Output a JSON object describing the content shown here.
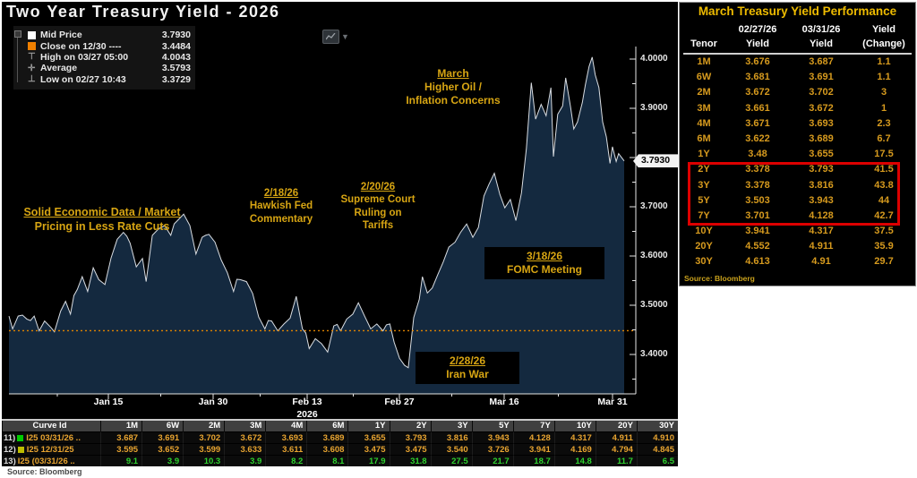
{
  "chart": {
    "title": "Two Year Treasury Yield - 2026",
    "legend": [
      {
        "icon": "mid-price-swatch",
        "glyph": "",
        "label": "Mid Price",
        "value": "3.7930"
      },
      {
        "icon": "close-line-swatch",
        "glyph": "",
        "label": "Close on 12/30 ----",
        "value": "3.4484"
      },
      {
        "icon": "high-marker",
        "glyph": "⊤",
        "label": "High on 03/27 05:00",
        "value": "4.0043"
      },
      {
        "icon": "average-marker",
        "glyph": "✛",
        "label": "Average",
        "value": "3.5793"
      },
      {
        "icon": "low-marker",
        "glyph": "⊥",
        "label": "Low on 02/27 10:43",
        "value": "3.3729"
      }
    ],
    "annotations": [
      {
        "id": "solid-economic-data",
        "lines": [
          "Solid Economic Data / Market",
          "Pricing in Less Rate Cuts"
        ]
      },
      {
        "id": "hawkish-fed",
        "lines": [
          "2/18/26",
          "Hawkish Fed",
          "Commentary"
        ]
      },
      {
        "id": "supreme-court",
        "lines": [
          "2/20/26",
          "Supreme Court",
          "Ruling on",
          "Tariffs"
        ]
      },
      {
        "id": "march-oil-inflation",
        "lines": [
          "March",
          "Higher Oil  /",
          "Inflation Concerns"
        ]
      },
      {
        "id": "fomc-meeting",
        "lines": [
          "3/18/26",
          "FOMC Meeting"
        ]
      },
      {
        "id": "iran-war",
        "lines": [
          "2/28/26",
          "Iran War"
        ]
      }
    ],
    "y_axis": {
      "ticks": [
        {
          "label": "4.0000",
          "v": 4.0
        },
        {
          "label": "3.9000",
          "v": 3.9
        },
        {
          "label": "3.7000",
          "v": 3.7
        },
        {
          "label": "3.6000",
          "v": 3.6
        },
        {
          "label": "3.5000",
          "v": 3.5
        },
        {
          "label": "3.4000",
          "v": 3.4
        }
      ],
      "last": {
        "label": "3.7930",
        "v": 3.793
      }
    },
    "x_axis": {
      "ticks": [
        {
          "label": "Jan 15",
          "x": 119
        },
        {
          "label": "Jan 30",
          "x": 236
        },
        {
          "label": "Feb 13",
          "x": 341
        },
        {
          "label": "Feb 27",
          "x": 444
        },
        {
          "label": "Mar 16",
          "x": 561
        },
        {
          "label": "Mar 31",
          "x": 682
        }
      ],
      "year": {
        "label": "2026",
        "x": 341
      }
    },
    "close_line_value": 3.4484
  },
  "chart_data": {
    "type": "area",
    "title": "Two Year Treasury Yield - 2026",
    "x_range": [
      "Jan 2 2026",
      "Mar 31 2026"
    ],
    "ylim": [
      3.35,
      4.05
    ],
    "grid": false,
    "legend_position": "top-left",
    "reference_line": {
      "name": "Close on 12/30",
      "value": 3.4484,
      "style": "orange-dashed"
    },
    "stats": {
      "last": 3.793,
      "high": 4.0043,
      "low": 3.3729,
      "average": 3.5793
    },
    "series": [
      {
        "name": "Mid Price",
        "points": [
          [
            0,
            3.478
          ],
          [
            0.006,
            3.452
          ],
          [
            0.015,
            3.478
          ],
          [
            0.029,
            3.472
          ],
          [
            0.041,
            3.478
          ],
          [
            0.049,
            3.448
          ],
          [
            0.058,
            3.468
          ],
          [
            0.068,
            3.455
          ],
          [
            0.074,
            3.446
          ],
          [
            0.084,
            3.488
          ],
          [
            0.092,
            3.508
          ],
          [
            0.1,
            3.482
          ],
          [
            0.111,
            3.532
          ],
          [
            0.119,
            3.558
          ],
          [
            0.128,
            3.528
          ],
          [
            0.137,
            3.576
          ],
          [
            0.146,
            3.552
          ],
          [
            0.156,
            3.542
          ],
          [
            0.166,
            3.596
          ],
          [
            0.176,
            3.634
          ],
          [
            0.186,
            3.648
          ],
          [
            0.197,
            3.626
          ],
          [
            0.207,
            3.578
          ],
          [
            0.217,
            3.595
          ],
          [
            0.223,
            3.548
          ],
          [
            0.233,
            3.642
          ],
          [
            0.243,
            3.655
          ],
          [
            0.253,
            3.662
          ],
          [
            0.263,
            3.642
          ],
          [
            0.274,
            3.672
          ],
          [
            0.284,
            3.685
          ],
          [
            0.294,
            3.662
          ],
          [
            0.304,
            3.604
          ],
          [
            0.314,
            3.638
          ],
          [
            0.325,
            3.644
          ],
          [
            0.335,
            3.628
          ],
          [
            0.345,
            3.592
          ],
          [
            0.355,
            3.566
          ],
          [
            0.365,
            3.528
          ],
          [
            0.376,
            3.552
          ],
          [
            0.386,
            3.548
          ],
          [
            0.396,
            3.524
          ],
          [
            0.406,
            3.476
          ],
          [
            0.416,
            3.452
          ],
          [
            0.427,
            3.468
          ],
          [
            0.437,
            3.448
          ],
          [
            0.447,
            3.462
          ],
          [
            0.457,
            3.474
          ],
          [
            0.467,
            3.518
          ],
          [
            0.477,
            3.452
          ],
          [
            0.488,
            3.412
          ],
          [
            0.498,
            3.432
          ],
          [
            0.508,
            3.422
          ],
          [
            0.518,
            3.405
          ],
          [
            0.528,
            3.458
          ],
          [
            0.539,
            3.448
          ],
          [
            0.549,
            3.472
          ],
          [
            0.559,
            3.482
          ],
          [
            0.568,
            3.505
          ],
          [
            0.578,
            3.478
          ],
          [
            0.588,
            3.452
          ],
          [
            0.598,
            3.462
          ],
          [
            0.608,
            3.448
          ],
          [
            0.619,
            3.462
          ],
          [
            0.626,
            3.425
          ],
          [
            0.635,
            3.392
          ],
          [
            0.643,
            3.378
          ],
          [
            0.649,
            3.373
          ],
          [
            0.658,
            3.475
          ],
          [
            0.667,
            3.512
          ],
          [
            0.672,
            3.558
          ],
          [
            0.68,
            3.525
          ],
          [
            0.688,
            3.535
          ],
          [
            0.697,
            3.562
          ],
          [
            0.706,
            3.588
          ],
          [
            0.715,
            3.618
          ],
          [
            0.725,
            3.628
          ],
          [
            0.734,
            3.648
          ],
          [
            0.744,
            3.665
          ],
          [
            0.754,
            3.638
          ],
          [
            0.763,
            3.658
          ],
          [
            0.772,
            3.722
          ],
          [
            0.78,
            3.745
          ],
          [
            0.789,
            3.768
          ],
          [
            0.798,
            3.725
          ],
          [
            0.806,
            3.698
          ],
          [
            0.815,
            3.715
          ],
          [
            0.824,
            3.672
          ],
          [
            0.833,
            3.728
          ],
          [
            0.841,
            3.818
          ],
          [
            0.849,
            3.952
          ],
          [
            0.856,
            3.878
          ],
          [
            0.865,
            3.908
          ],
          [
            0.873,
            3.885
          ],
          [
            0.881,
            3.942
          ],
          [
            0.885,
            3.802
          ],
          [
            0.892,
            3.888
          ],
          [
            0.9,
            3.905
          ],
          [
            0.905,
            3.962
          ],
          [
            0.913,
            3.902
          ],
          [
            0.918,
            3.858
          ],
          [
            0.924,
            3.872
          ],
          [
            0.932,
            3.912
          ],
          [
            0.937,
            3.948
          ],
          [
            0.943,
            3.985
          ],
          [
            0.948,
            4.004
          ],
          [
            0.953,
            3.968
          ],
          [
            0.959,
            3.942
          ],
          [
            0.965,
            3.872
          ],
          [
            0.971,
            3.842
          ],
          [
            0.977,
            3.788
          ],
          [
            0.981,
            3.822
          ],
          [
            0.987,
            3.792
          ],
          [
            0.991,
            3.808
          ],
          [
            1,
            3.793
          ]
        ]
      }
    ]
  },
  "right_panel": {
    "title": "March Treasury Yield Performance",
    "headers_top": [
      "",
      "02/27/26",
      "03/31/26",
      "Yield"
    ],
    "headers_bottom": [
      "Tenor",
      "Yield",
      "Yield",
      "(Change)"
    ],
    "rows": [
      {
        "tenor": "1M",
        "y1": "3.676",
        "y2": "3.687",
        "chg": "1.1"
      },
      {
        "tenor": "6W",
        "y1": "3.681",
        "y2": "3.691",
        "chg": "1.1"
      },
      {
        "tenor": "2M",
        "y1": "3.672",
        "y2": "3.702",
        "chg": "3"
      },
      {
        "tenor": "3M",
        "y1": "3.661",
        "y2": "3.672",
        "chg": "1"
      },
      {
        "tenor": "4M",
        "y1": "3.671",
        "y2": "3.693",
        "chg": "2.3"
      },
      {
        "tenor": "6M",
        "y1": "3.622",
        "y2": "3.689",
        "chg": "6.7"
      },
      {
        "tenor": "1Y",
        "y1": "3.48",
        "y2": "3.655",
        "chg": "17.5"
      },
      {
        "tenor": "2Y",
        "y1": "3.378",
        "y2": "3.793",
        "chg": "41.5"
      },
      {
        "tenor": "3Y",
        "y1": "3.378",
        "y2": "3.816",
        "chg": "43.8"
      },
      {
        "tenor": "5Y",
        "y1": "3.503",
        "y2": "3.943",
        "chg": "44"
      },
      {
        "tenor": "7Y",
        "y1": "3.701",
        "y2": "4.128",
        "chg": "42.7"
      },
      {
        "tenor": "10Y",
        "y1": "3.941",
        "y2": "4.317",
        "chg": "37.5"
      },
      {
        "tenor": "20Y",
        "y1": "4.552",
        "y2": "4.911",
        "chg": "35.9"
      },
      {
        "tenor": "30Y",
        "y1": "4.613",
        "y2": "4.91",
        "chg": "29.7"
      }
    ],
    "highlighted_tenors": [
      "2Y",
      "3Y",
      "5Y",
      "7Y"
    ],
    "source": "Source: Bloomberg"
  },
  "curve_table": {
    "headers": [
      "Curve Id",
      "1M",
      "6W",
      "2M",
      "3M",
      "4M",
      "6M",
      "1Y",
      "2Y",
      "3Y",
      "5Y",
      "7Y",
      "10Y",
      "20Y",
      "30Y"
    ],
    "rows": [
      {
        "num": "11)",
        "swatch": "#00cc00",
        "label": "I25 03/31/26 ..",
        "color": "#e8a430",
        "values": [
          "3.687",
          "3.691",
          "3.702",
          "3.672",
          "3.693",
          "3.689",
          "3.655",
          "3.793",
          "3.816",
          "3.943",
          "4.128",
          "4.317",
          "4.911",
          "4.910"
        ]
      },
      {
        "num": "12)",
        "swatch": "#bdbd00",
        "label": "I25 12/31/25",
        "color": "#e8a430",
        "values": [
          "3.595",
          "3.652",
          "3.599",
          "3.633",
          "3.611",
          "3.608",
          "3.475",
          "3.475",
          "3.540",
          "3.726",
          "3.941",
          "4.169",
          "4.794",
          "4.845"
        ]
      },
      {
        "num": "13)",
        "swatch": "",
        "label": "I25 (03/31/26 ..",
        "color": "#2fd32f",
        "values": [
          "9.1",
          "3.9",
          "10.3",
          "3.9",
          "8.2",
          "8.1",
          "17.9",
          "31.8",
          "27.5",
          "21.7",
          "18.7",
          "14.8",
          "11.7",
          "6.5"
        ]
      }
    ],
    "source": "Source: Bloomberg"
  },
  "colors": {
    "area_fill": "#14293f",
    "line": "#d9dde2",
    "close_line": "#e08400",
    "axis": "#e6e6e6",
    "annotation_gold": "#d7a513",
    "highlight_red": "#dd0000"
  }
}
